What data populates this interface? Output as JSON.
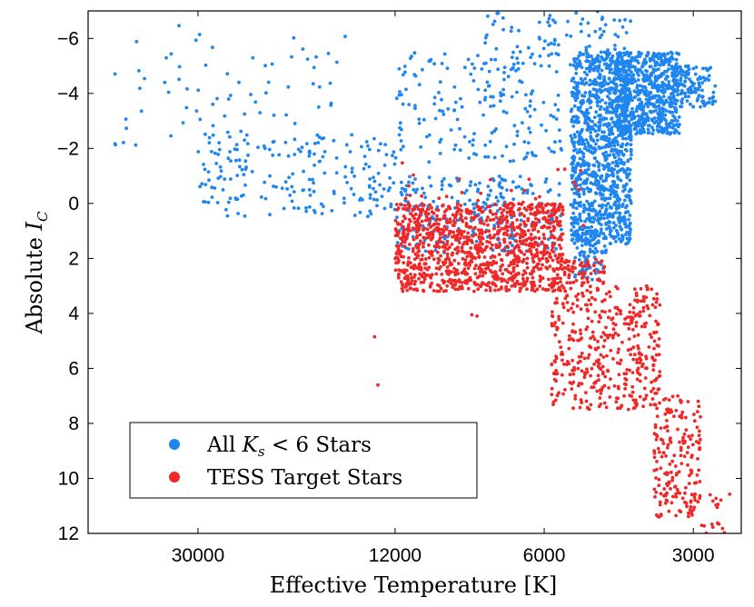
{
  "chart_data": {
    "type": "scatter",
    "title": "",
    "xlabel": "Effective Temperature [K]",
    "ylabel": "Absolute I_C",
    "ylabel_main": "Absolute ",
    "ylabel_sub": "C",
    "ylabel_var": "I",
    "x_scale": "log",
    "x_reversed": true,
    "xlim": [
      50000,
      2400
    ],
    "ylim": [
      12,
      -7
    ],
    "x_ticks": [
      30000,
      12000,
      6000,
      3000
    ],
    "x_tick_labels": [
      "30000",
      "12000",
      "6000",
      "3000"
    ],
    "y_ticks": [
      -6,
      -4,
      -2,
      0,
      2,
      4,
      6,
      8,
      10,
      12
    ],
    "y_tick_labels": [
      "−6",
      "−4",
      "−2",
      "0",
      "2",
      "4",
      "6",
      "8",
      "10",
      "12"
    ],
    "legend_position": "bottom-left",
    "series": [
      {
        "name": "All K_s < 6 Stars",
        "legend_prefix": "All ",
        "legend_var": "K",
        "legend_sub": "s",
        "legend_suffix": " < 6 Stars",
        "color": "#1f86f0",
        "regions": [
          {
            "teff": [
              4000,
              5300
            ],
            "mag": [
              -5.5,
              1.5
            ],
            "count": 1100
          },
          {
            "teff": [
              3200,
              4300
            ],
            "mag": [
              -5.5,
              -2.5
            ],
            "count": 650
          },
          {
            "teff": [
              2700,
              3300
            ],
            "mag": [
              -5.0,
              -3.5
            ],
            "count": 120
          },
          {
            "teff": [
              4500,
              5200
            ],
            "mag": [
              1.0,
              2.8
            ],
            "count": 90
          },
          {
            "teff": [
              12000,
              30000
            ],
            "mag": [
              -2.5,
              0.5
            ],
            "count": 200
          },
          {
            "teff": [
              5500,
              12000
            ],
            "mag": [
              -1.0,
              1.8
            ],
            "count": 260
          },
          {
            "teff": [
              5500,
              12000
            ],
            "mag": [
              -5.5,
              -1.5
            ],
            "count": 180
          },
          {
            "teff": [
              15000,
              45000
            ],
            "mag": [
              -6.5,
              -2.0
            ],
            "count": 70
          },
          {
            "teff": [
              4000,
              8000
            ],
            "mag": [
              -7.0,
              -5.0
            ],
            "count": 90
          }
        ]
      },
      {
        "name": "TESS Target Stars",
        "legend_text": "TESS Target Stars",
        "color": "#f02828",
        "regions": [
          {
            "teff": [
              5500,
              12000
            ],
            "mag": [
              0,
              3.2
            ],
            "count": 1100
          },
          {
            "teff": [
              3500,
              5800
            ],
            "mag": [
              3,
              7.5
            ],
            "count": 420
          },
          {
            "teff": [
              2900,
              3600
            ],
            "mag": [
              7,
              11.5
            ],
            "count": 180
          },
          {
            "teff": [
              4500,
              5500
            ],
            "mag": [
              2,
              3
            ],
            "count": 60
          },
          {
            "teff": [
              2500,
              3200
            ],
            "mag": [
              10.5,
              12
            ],
            "count": 25
          },
          {
            "teff": [
              5000,
              12000
            ],
            "mag": [
              -1.5,
              0
            ],
            "count": 25
          }
        ],
        "points": [
          [
            13200,
            4.85
          ],
          [
            13000,
            6.6
          ],
          [
            8400,
            4.05
          ],
          [
            8200,
            4.1
          ],
          [
            5100,
            -0.5
          ],
          [
            5000,
            0.8
          ]
        ]
      }
    ]
  }
}
